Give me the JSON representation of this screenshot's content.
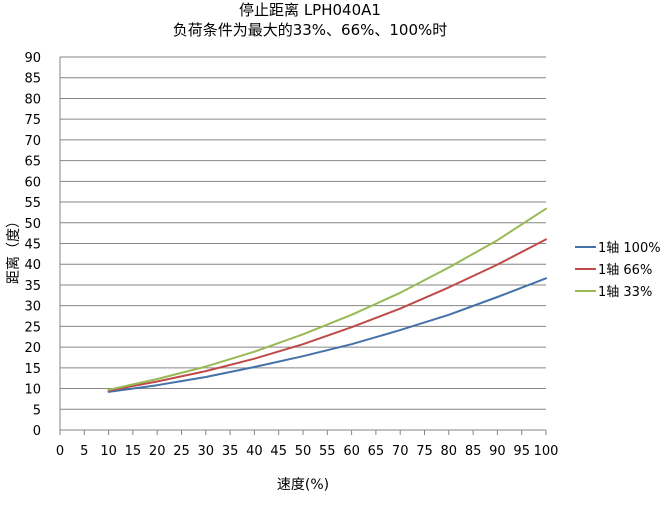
{
  "chart_data": {
    "type": "line",
    "title": "停止距离 LPH040A1",
    "subtitle": "负荷条件为最大的33%、66%、100%时",
    "xlabel": "速度(%)",
    "ylabel": "距离（度）",
    "xlim": [
      0,
      100
    ],
    "ylim": [
      0,
      90
    ],
    "xticks": [
      0,
      5,
      10,
      15,
      20,
      25,
      30,
      35,
      40,
      45,
      50,
      55,
      60,
      65,
      70,
      75,
      80,
      85,
      90,
      95,
      100
    ],
    "yticks": [
      0,
      5,
      10,
      15,
      20,
      25,
      30,
      35,
      40,
      45,
      50,
      55,
      60,
      65,
      70,
      75,
      80,
      85,
      90
    ],
    "grid": "horizontal",
    "legend_position": "right",
    "series": [
      {
        "name": "1轴  100%",
        "color": "#4472a8",
        "x": [
          10,
          20,
          30,
          40,
          50,
          60,
          70,
          80,
          90,
          100
        ],
        "y": [
          9.2,
          10.8,
          12.8,
          15.2,
          17.8,
          20.7,
          24.1,
          27.8,
          32.1,
          36.6
        ]
      },
      {
        "name": "1轴  66%",
        "color": "#be4b48",
        "x": [
          10,
          20,
          30,
          40,
          50,
          60,
          70,
          80,
          90,
          100
        ],
        "y": [
          9.5,
          11.7,
          14.2,
          17.2,
          20.7,
          24.8,
          29.3,
          34.4,
          39.9,
          46.0
        ]
      },
      {
        "name": "1轴  33%",
        "color": "#98b954",
        "x": [
          10,
          20,
          30,
          40,
          50,
          60,
          70,
          80,
          90,
          100
        ],
        "y": [
          9.7,
          12.3,
          15.3,
          18.9,
          23.1,
          27.8,
          33.1,
          39.2,
          45.8,
          53.4
        ]
      }
    ]
  }
}
